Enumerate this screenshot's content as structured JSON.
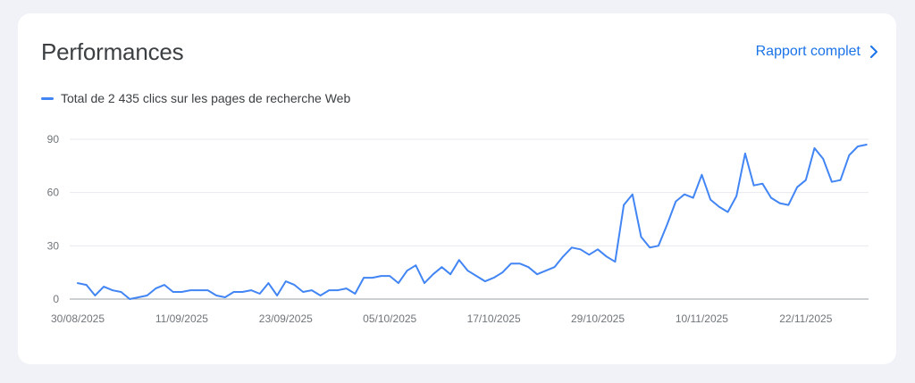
{
  "header": {
    "title": "Performances",
    "report_label": "Rapport complet"
  },
  "icons": {
    "report": "chevron-right-icon"
  },
  "colors": {
    "series": "#4285f4",
    "link": "#1a73e8",
    "grid": "#e8eaed",
    "background": "#f0f2f7"
  },
  "chart_data": {
    "type": "line",
    "title": "",
    "xlabel": "",
    "ylabel": "",
    "ylim": [
      0,
      90
    ],
    "yticks": [
      "0",
      "30",
      "60",
      "90"
    ],
    "xticks": [
      "30/08/2025",
      "11/09/2025",
      "23/09/2025",
      "05/10/2025",
      "17/10/2025",
      "29/10/2025",
      "10/11/2025",
      "22/11/2025"
    ],
    "grid": true,
    "legend_position": "top-left",
    "series": [
      {
        "name": "Total de 2 435 clics sur les pages de recherche Web",
        "x": [
          "30/08/2025",
          "31/08/2025",
          "01/09/2025",
          "02/09/2025",
          "03/09/2025",
          "04/09/2025",
          "05/09/2025",
          "06/09/2025",
          "07/09/2025",
          "08/09/2025",
          "09/09/2025",
          "10/09/2025",
          "11/09/2025",
          "12/09/2025",
          "13/09/2025",
          "14/09/2025",
          "15/09/2025",
          "16/09/2025",
          "17/09/2025",
          "18/09/2025",
          "19/09/2025",
          "20/09/2025",
          "21/09/2025",
          "22/09/2025",
          "23/09/2025",
          "24/09/2025",
          "25/09/2025",
          "26/09/2025",
          "27/09/2025",
          "28/09/2025",
          "29/09/2025",
          "30/09/2025",
          "01/10/2025",
          "02/10/2025",
          "03/10/2025",
          "04/10/2025",
          "05/10/2025",
          "06/10/2025",
          "07/10/2025",
          "08/10/2025",
          "09/10/2025",
          "10/10/2025",
          "11/10/2025",
          "12/10/2025",
          "13/10/2025",
          "14/10/2025",
          "15/10/2025",
          "16/10/2025",
          "17/10/2025",
          "18/10/2025",
          "19/10/2025",
          "20/10/2025",
          "21/10/2025",
          "22/10/2025",
          "23/10/2025",
          "24/10/2025",
          "25/10/2025",
          "26/10/2025",
          "27/10/2025",
          "28/10/2025",
          "29/10/2025",
          "30/10/2025",
          "31/10/2025",
          "01/11/2025",
          "02/11/2025",
          "03/11/2025",
          "04/11/2025",
          "05/11/2025",
          "06/11/2025",
          "07/11/2025",
          "08/11/2025",
          "09/11/2025",
          "10/11/2025",
          "11/11/2025",
          "12/11/2025",
          "13/11/2025",
          "14/11/2025",
          "15/11/2025",
          "16/11/2025",
          "17/11/2025",
          "18/11/2025",
          "19/11/2025",
          "20/11/2025",
          "21/11/2025",
          "22/11/2025",
          "23/11/2025",
          "24/11/2025",
          "25/11/2025",
          "26/11/2025",
          "27/11/2025",
          "28/11/2025",
          "29/11/2025"
        ],
        "values": [
          9,
          8,
          2,
          7,
          5,
          4,
          0,
          1,
          2,
          6,
          8,
          4,
          4,
          5,
          5,
          5,
          2,
          1,
          4,
          4,
          5,
          3,
          9,
          2,
          10,
          8,
          4,
          5,
          2,
          5,
          5,
          6,
          3,
          12,
          12,
          13,
          13,
          9,
          16,
          19,
          9,
          14,
          18,
          14,
          22,
          16,
          13,
          10,
          12,
          15,
          20,
          20,
          18,
          14,
          16,
          18,
          24,
          29,
          28,
          25,
          28,
          24,
          21,
          53,
          59,
          35,
          29,
          30,
          42,
          55,
          59,
          57,
          70,
          56,
          52,
          49,
          58,
          82,
          64,
          65,
          57,
          54,
          53,
          63,
          67,
          85,
          79,
          66,
          67,
          81,
          86,
          87
        ]
      }
    ]
  }
}
